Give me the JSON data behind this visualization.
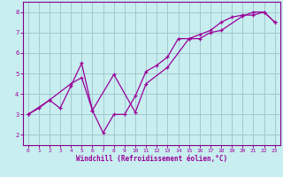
{
  "xlabel": "Windchill (Refroidissement éolien,°C)",
  "background_color": "#c8eef0",
  "grid_color": "#a0c8d0",
  "line_color": "#990099",
  "spine_color": "#880088",
  "xlim": [
    -0.5,
    23.5
  ],
  "ylim": [
    1.5,
    8.5
  ],
  "yticks": [
    2,
    3,
    4,
    5,
    6,
    7,
    8
  ],
  "xticks": [
    0,
    1,
    2,
    3,
    4,
    5,
    6,
    7,
    8,
    9,
    10,
    11,
    12,
    13,
    14,
    15,
    16,
    17,
    18,
    19,
    20,
    21,
    22,
    23
  ],
  "line1_x": [
    0,
    1,
    2,
    3,
    4,
    5,
    6,
    7,
    8,
    9,
    10,
    11,
    12,
    13,
    14,
    15,
    16,
    17,
    18,
    19,
    20,
    21,
    22,
    23
  ],
  "line1_y": [
    3.0,
    3.3,
    3.7,
    3.3,
    4.4,
    5.5,
    3.2,
    2.1,
    3.0,
    3.0,
    3.9,
    5.1,
    5.4,
    5.8,
    6.7,
    6.7,
    6.9,
    7.1,
    7.5,
    7.75,
    7.85,
    7.85,
    8.0,
    7.5
  ],
  "line2_x": [
    0,
    2,
    4,
    5,
    6,
    8,
    10,
    11,
    13,
    15,
    16,
    17,
    18,
    20,
    21,
    22,
    23
  ],
  "line2_y": [
    3.0,
    3.7,
    4.5,
    4.8,
    3.2,
    4.95,
    3.1,
    4.5,
    5.3,
    6.7,
    6.7,
    7.0,
    7.1,
    7.8,
    8.0,
    8.0,
    7.5
  ]
}
